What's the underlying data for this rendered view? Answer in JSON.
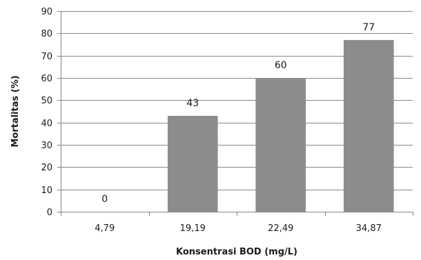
{
  "chart_data": {
    "type": "bar",
    "categories": [
      "4,79",
      "19,19",
      "22,49",
      "34,87"
    ],
    "values": [
      0,
      43,
      60,
      77
    ],
    "data_labels": [
      "0",
      "43",
      "60",
      "77"
    ],
    "title": "",
    "xlabel": "Konsentrasi BOD (mg/L)",
    "ylabel": "Mortalitas (%)",
    "ylim": [
      0,
      90
    ],
    "yticks": [
      0,
      10,
      20,
      30,
      40,
      50,
      60,
      70,
      80,
      90
    ],
    "ytick_labels": [
      "0",
      "10",
      "20",
      "30",
      "40",
      "50",
      "60",
      "70",
      "80",
      "90"
    ],
    "grid": true,
    "legend": "none",
    "bar_color": "#8c8c8c",
    "grid_color": "#868686",
    "axis_color": "#868686"
  }
}
